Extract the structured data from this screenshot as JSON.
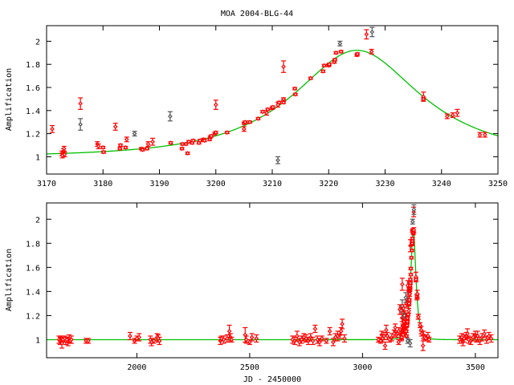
{
  "colors": {
    "series_main": "#ff0000",
    "series_alt": "#555555",
    "model": "#00c000",
    "axis": "#000000"
  },
  "chart_data": [
    {
      "type": "scatter",
      "title": "MOA 2004-BLG-44",
      "xlabel": "",
      "ylabel": "Amplification",
      "xlim": [
        3170,
        3250
      ],
      "ylim": [
        0.85,
        2.135
      ],
      "xticks": [
        "3170",
        "3180",
        "3190",
        "3200",
        "3210",
        "3220",
        "3230",
        "3240",
        "3250"
      ],
      "yticks": [
        "1",
        "1.2",
        "1.4",
        "1.6",
        "1.8",
        "2"
      ],
      "grid": false,
      "model": {
        "name": "microlensing fit",
        "t0": 3225,
        "u0": 0.585,
        "tE": 21,
        "baseline": 1.0
      },
      "points_format": [
        "x",
        "amplification",
        "error",
        "is_alt_dataset"
      ],
      "points": [
        [
          3171,
          1.24,
          0.03,
          0
        ],
        [
          3172.7,
          1.03,
          0.02,
          0
        ],
        [
          3172.8,
          1.01,
          0.02,
          0
        ],
        [
          3173,
          1.05,
          0.02,
          0
        ],
        [
          3173.1,
          1.07,
          0.02,
          0
        ],
        [
          3173.2,
          1.02,
          0.02,
          0
        ],
        [
          3176,
          1.46,
          0.05,
          0
        ],
        [
          3176,
          1.28,
          0.05,
          1
        ],
        [
          3179,
          1.11,
          0.02,
          0
        ],
        [
          3179.2,
          1.09,
          0.02,
          0
        ],
        [
          3180,
          1.08,
          0.01,
          0
        ],
        [
          3180.1,
          1.04,
          0.01,
          0
        ],
        [
          3182.2,
          1.26,
          0.03,
          0
        ],
        [
          3183,
          1.07,
          0.01,
          0
        ],
        [
          3183.1,
          1.1,
          0.01,
          0
        ],
        [
          3184,
          1.08,
          0.01,
          0
        ],
        [
          3184.2,
          1.15,
          0.02,
          0
        ],
        [
          3185.6,
          1.2,
          0.02,
          1
        ],
        [
          3186.8,
          1.07,
          0.01,
          0
        ],
        [
          3187,
          1.06,
          0.01,
          0
        ],
        [
          3187.8,
          1.07,
          0.01,
          0
        ],
        [
          3188,
          1.11,
          0.02,
          0
        ],
        [
          3188.8,
          1.13,
          0.03,
          0
        ],
        [
          3191.9,
          1.35,
          0.04,
          1
        ],
        [
          3192,
          1.12,
          0.01,
          0
        ],
        [
          3194,
          1.07,
          0.01,
          0
        ],
        [
          3194.1,
          1.11,
          0.01,
          0
        ],
        [
          3194.7,
          1.11,
          0.01,
          0
        ],
        [
          3195,
          1.03,
          0.01,
          0
        ],
        [
          3195.2,
          1.13,
          0.01,
          0
        ],
        [
          3195.8,
          1.12,
          0.01,
          0
        ],
        [
          3196,
          1.14,
          0.01,
          0
        ],
        [
          3197,
          1.12,
          0.01,
          0
        ],
        [
          3197.2,
          1.14,
          0.01,
          0
        ],
        [
          3197.8,
          1.15,
          0.01,
          0
        ],
        [
          3198,
          1.14,
          0.01,
          0
        ],
        [
          3198.9,
          1.15,
          0.01,
          0
        ],
        [
          3199,
          1.17,
          0.01,
          0
        ],
        [
          3199.2,
          1.18,
          0.01,
          0
        ],
        [
          3199.8,
          1.2,
          0.01,
          0
        ],
        [
          3200,
          1.21,
          0.01,
          0
        ],
        [
          3200,
          1.45,
          0.04,
          0
        ],
        [
          3202,
          1.21,
          0.01,
          0
        ],
        [
          3205,
          1.24,
          0.02,
          0
        ],
        [
          3205,
          1.29,
          0.01,
          0
        ],
        [
          3205.2,
          1.3,
          0.01,
          0
        ],
        [
          3206,
          1.3,
          0.01,
          0
        ],
        [
          3207.5,
          1.33,
          0.01,
          0
        ],
        [
          3208.3,
          1.39,
          0.01,
          0
        ],
        [
          3209,
          1.38,
          0.02,
          0
        ],
        [
          3209.2,
          1.41,
          0.01,
          0
        ],
        [
          3210,
          1.42,
          0.01,
          0
        ],
        [
          3210.1,
          1.43,
          0.01,
          0
        ],
        [
          3211,
          1.45,
          0.02,
          0
        ],
        [
          3211.2,
          1.47,
          0.01,
          0
        ],
        [
          3211,
          0.97,
          0.03,
          1
        ],
        [
          3212,
          1.5,
          0.01,
          0
        ],
        [
          3212,
          1.78,
          0.05,
          0
        ],
        [
          3212,
          1.47,
          0.01,
          0
        ],
        [
          3214,
          1.59,
          0.01,
          0
        ],
        [
          3214.1,
          1.54,
          0.01,
          0
        ],
        [
          3216.8,
          1.68,
          0.01,
          0
        ],
        [
          3219,
          1.74,
          0.01,
          0
        ],
        [
          3219.2,
          1.79,
          0.01,
          0
        ],
        [
          3220,
          1.79,
          0.01,
          0
        ],
        [
          3220.1,
          1.8,
          0.01,
          0
        ],
        [
          3221,
          1.82,
          0.01,
          0
        ],
        [
          3221.1,
          1.84,
          0.01,
          0
        ],
        [
          3221.3,
          1.9,
          0.01,
          0
        ],
        [
          3222,
          1.98,
          0.02,
          1
        ],
        [
          3222.2,
          1.91,
          0.01,
          0
        ],
        [
          3225,
          1.88,
          0.01,
          0
        ],
        [
          3225.1,
          1.89,
          0.01,
          0
        ],
        [
          3226.7,
          2.06,
          0.04,
          0
        ],
        [
          3227.7,
          2.08,
          0.04,
          1
        ],
        [
          3227.6,
          1.91,
          0.02,
          0
        ],
        [
          3236.8,
          1.52,
          0.04,
          0
        ],
        [
          3236.8,
          1.5,
          0.01,
          0
        ],
        [
          3241,
          1.35,
          0.02,
          0
        ],
        [
          3242,
          1.36,
          0.02,
          0
        ],
        [
          3242.8,
          1.38,
          0.03,
          0
        ],
        [
          3246.8,
          1.19,
          0.02,
          0
        ],
        [
          3247.7,
          1.19,
          0.02,
          0
        ]
      ]
    },
    {
      "type": "scatter",
      "title": "",
      "xlabel": "JD - 2450000",
      "ylabel": "Amplification",
      "xlim": [
        1600,
        3600
      ],
      "ylim": [
        0.85,
        2.135
      ],
      "xticks": [
        "2000",
        "2500",
        "3000",
        "3500"
      ],
      "yticks": [
        "1",
        "1.2",
        "1.4",
        "1.6",
        "1.8",
        "2"
      ],
      "grid": false,
      "includes_points_of_panel": 0,
      "points": [
        [
          1655,
          1.0,
          0.03,
          0
        ],
        [
          1660,
          0.99,
          0.03,
          0
        ],
        [
          1665,
          1.01,
          0.02,
          0
        ],
        [
          1668,
          0.97,
          0.04,
          0
        ],
        [
          1672,
          1.0,
          0.02,
          0
        ],
        [
          1680,
          1.01,
          0.02,
          0
        ],
        [
          1685,
          0.99,
          0.03,
          0
        ],
        [
          1690,
          1.0,
          0.02,
          0
        ],
        [
          1695,
          0.98,
          0.03,
          0
        ],
        [
          1700,
          1.01,
          0.03,
          0
        ],
        [
          1705,
          0.99,
          0.02,
          0
        ],
        [
          1710,
          1.0,
          0.03,
          0
        ],
        [
          1775,
          0.99,
          0.02,
          0
        ],
        [
          1785,
          0.99,
          0.02,
          0
        ],
        [
          1970,
          1.03,
          0.03,
          0
        ],
        [
          1990,
          0.99,
          0.02,
          0
        ],
        [
          2000,
          1.01,
          0.02,
          0
        ],
        [
          2010,
          1.02,
          0.03,
          0
        ],
        [
          2060,
          1.0,
          0.03,
          0
        ],
        [
          2065,
          0.98,
          0.03,
          0
        ],
        [
          2075,
          0.99,
          0.02,
          0
        ],
        [
          2090,
          1.02,
          0.03,
          0
        ],
        [
          2095,
          1.01,
          0.03,
          0
        ],
        [
          2100,
          0.99,
          0.03,
          0
        ],
        [
          2370,
          0.99,
          0.03,
          0
        ],
        [
          2375,
          1.01,
          0.02,
          0
        ],
        [
          2385,
          1.0,
          0.03,
          0
        ],
        [
          2400,
          1.01,
          0.03,
          0
        ],
        [
          2410,
          1.07,
          0.05,
          0
        ],
        [
          2415,
          1.02,
          0.03,
          0
        ],
        [
          2420,
          1.0,
          0.02,
          0
        ],
        [
          2480,
          1.04,
          0.06,
          0
        ],
        [
          2485,
          1.0,
          0.03,
          0
        ],
        [
          2500,
          0.98,
          0.02,
          0
        ],
        [
          2510,
          1.02,
          0.03,
          0
        ],
        [
          2530,
          1.01,
          0.03,
          0
        ],
        [
          2690,
          1.0,
          0.03,
          0
        ],
        [
          2700,
          0.99,
          0.03,
          0
        ],
        [
          2710,
          1.03,
          0.04,
          0
        ],
        [
          2720,
          0.98,
          0.03,
          0
        ],
        [
          2730,
          1.0,
          0.03,
          0
        ],
        [
          2740,
          1.02,
          0.03,
          0
        ],
        [
          2750,
          1.01,
          0.03,
          0
        ],
        [
          2760,
          0.99,
          0.03,
          0
        ],
        [
          2770,
          1.02,
          0.03,
          0
        ],
        [
          2780,
          0.99,
          0.03,
          0
        ],
        [
          2790,
          1.09,
          0.03,
          0
        ],
        [
          2800,
          1.0,
          0.03,
          0
        ],
        [
          2810,
          0.98,
          0.03,
          0
        ],
        [
          2820,
          1.01,
          0.02,
          0
        ],
        [
          2840,
          0.99,
          0.02,
          0
        ],
        [
          2855,
          1.07,
          0.03,
          0
        ],
        [
          2870,
          0.98,
          0.03,
          0
        ],
        [
          2880,
          1.02,
          0.03,
          0
        ],
        [
          2890,
          1.03,
          0.04,
          0
        ],
        [
          2900,
          1.04,
          0.03,
          0
        ],
        [
          2905,
          1.07,
          0.03,
          0
        ],
        [
          2910,
          1.13,
          0.04,
          0
        ],
        [
          2920,
          1.01,
          0.03,
          0
        ],
        [
          3070,
          1.0,
          0.02,
          0
        ],
        [
          3080,
          0.99,
          0.02,
          0
        ],
        [
          3085,
          1.04,
          0.03,
          0
        ],
        [
          3090,
          1.01,
          0.03,
          0
        ],
        [
          3095,
          1.03,
          0.03,
          0
        ],
        [
          3100,
          0.95,
          0.03,
          0
        ],
        [
          3105,
          1.08,
          0.04,
          0
        ],
        [
          3110,
          1.03,
          0.03,
          0
        ],
        [
          3120,
          1.0,
          0.02,
          0
        ],
        [
          3130,
          1.02,
          0.03,
          0
        ],
        [
          3140,
          1.05,
          0.03,
          0
        ],
        [
          3145,
          1.1,
          0.03,
          0
        ],
        [
          3150,
          1.04,
          0.02,
          0
        ],
        [
          3160,
          1.07,
          0.03,
          0
        ],
        [
          3160,
          0.98,
          0.02,
          0
        ],
        [
          3165,
          1.25,
          0.04,
          0
        ],
        [
          3175,
          1.18,
          0.03,
          0
        ],
        [
          3180,
          1.15,
          0.03,
          0
        ],
        [
          3185,
          1.21,
          0.03,
          0
        ],
        [
          3190,
          1.12,
          0.03,
          0
        ],
        [
          3195,
          1.3,
          0.03,
          0
        ],
        [
          3200,
          1.32,
          0.03,
          0
        ],
        [
          3205,
          1.4,
          0.03,
          0
        ],
        [
          3200,
          0.99,
          0.02,
          1
        ],
        [
          3255,
          1.12,
          0.02,
          0
        ],
        [
          3260,
          1.08,
          0.03,
          0
        ],
        [
          3262,
          1.05,
          0.02,
          0
        ],
        [
          3268,
          0.95,
          0.04,
          0
        ],
        [
          3270,
          1.04,
          0.03,
          0
        ],
        [
          3275,
          1.02,
          0.02,
          0
        ],
        [
          3280,
          1.01,
          0.02,
          0
        ],
        [
          3290,
          1.03,
          0.03,
          0
        ],
        [
          3295,
          1.0,
          0.02,
          0
        ],
        [
          3430,
          1.0,
          0.03,
          0
        ],
        [
          3440,
          1.02,
          0.03,
          0
        ],
        [
          3445,
          0.98,
          0.03,
          0
        ],
        [
          3450,
          1.01,
          0.03,
          0
        ],
        [
          3460,
          1.03,
          0.03,
          0
        ],
        [
          3465,
          1.05,
          0.04,
          0
        ],
        [
          3470,
          1.0,
          0.03,
          0
        ],
        [
          3480,
          0.99,
          0.03,
          0
        ],
        [
          3490,
          1.02,
          0.03,
          0
        ],
        [
          3500,
          1.04,
          0.03,
          0
        ],
        [
          3505,
          1.01,
          0.03,
          0
        ],
        [
          3510,
          1.03,
          0.04,
          0
        ],
        [
          3520,
          0.99,
          0.03,
          0
        ],
        [
          3530,
          1.02,
          0.03,
          0
        ],
        [
          3540,
          1.05,
          0.03,
          0
        ],
        [
          3550,
          1.0,
          0.03,
          0
        ],
        [
          3560,
          1.03,
          0.03,
          0
        ],
        [
          3570,
          1.01,
          0.03,
          0
        ]
      ]
    }
  ]
}
